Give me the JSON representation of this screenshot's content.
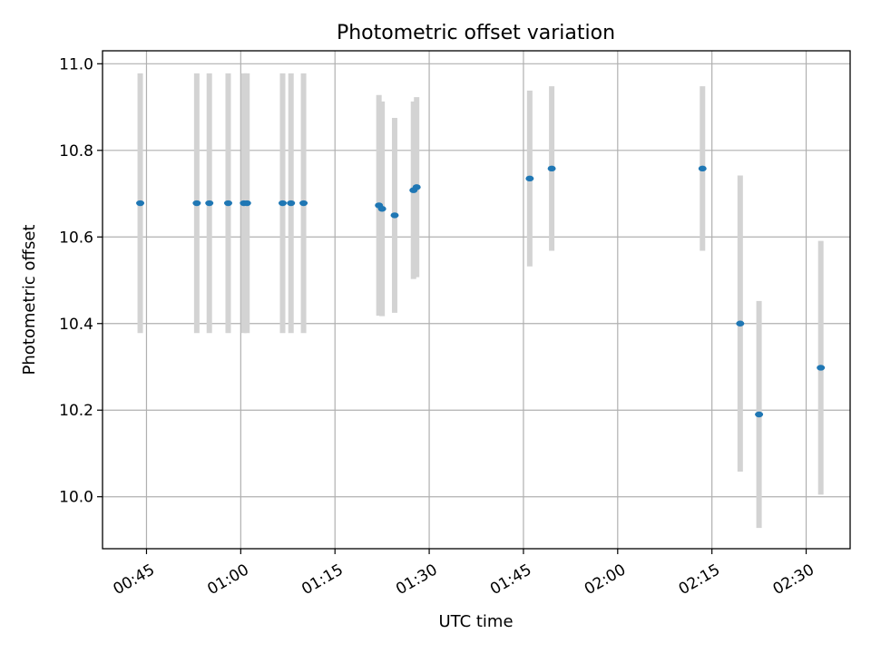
{
  "chart_data": {
    "type": "scatter",
    "title": "Photometric offset variation",
    "xlabel": "UTC time",
    "ylabel": "Photometric offset",
    "x_format": "HH:MM",
    "xlim": [
      "00:38",
      "02:37"
    ],
    "ylim": [
      9.88,
      11.03
    ],
    "grid": true,
    "x_ticks": [
      "00:45",
      "01:00",
      "01:15",
      "01:30",
      "01:45",
      "02:00",
      "02:15",
      "02:30"
    ],
    "y_ticks": [
      10.0,
      10.2,
      10.4,
      10.6,
      10.8,
      11.0
    ],
    "y_tick_labels": [
      "10.0",
      "10.2",
      "10.4",
      "10.6",
      "10.8",
      "11.0"
    ],
    "colors": {
      "point": "#1f77b4",
      "error_bar": "#d3d3d3",
      "grid": "#b0b0b0"
    },
    "points": [
      {
        "time": "00:44:00",
        "y": 10.678,
        "err": 0.3
      },
      {
        "time": "00:53:00",
        "y": 10.678,
        "err": 0.3
      },
      {
        "time": "00:55:00",
        "y": 10.678,
        "err": 0.3
      },
      {
        "time": "00:58:00",
        "y": 10.678,
        "err": 0.3
      },
      {
        "time": "01:00:30",
        "y": 10.678,
        "err": 0.3
      },
      {
        "time": "01:01:00",
        "y": 10.678,
        "err": 0.3
      },
      {
        "time": "01:06:40",
        "y": 10.678,
        "err": 0.3
      },
      {
        "time": "01:08:00",
        "y": 10.678,
        "err": 0.3
      },
      {
        "time": "01:10:00",
        "y": 10.678,
        "err": 0.3
      },
      {
        "time": "01:22:00",
        "y": 10.673,
        "err": 0.255
      },
      {
        "time": "01:22:30",
        "y": 10.665,
        "err": 0.248
      },
      {
        "time": "01:24:30",
        "y": 10.65,
        "err": 0.225
      },
      {
        "time": "01:27:30",
        "y": 10.708,
        "err": 0.205
      },
      {
        "time": "01:28:00",
        "y": 10.715,
        "err": 0.208
      },
      {
        "time": "01:46:00",
        "y": 10.735,
        "err": 0.203
      },
      {
        "time": "01:49:30",
        "y": 10.758,
        "err": 0.19
      },
      {
        "time": "02:13:30",
        "y": 10.758,
        "err": 0.19
      },
      {
        "time": "02:19:30",
        "y": 10.4,
        "err": 0.342
      },
      {
        "time": "02:22:30",
        "y": 10.19,
        "err": 0.262
      },
      {
        "time": "02:32:20",
        "y": 10.298,
        "err": 0.293
      }
    ]
  }
}
